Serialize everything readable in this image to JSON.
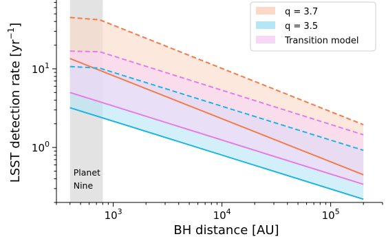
{
  "chart_data": {
    "type": "area",
    "xlabel": "BH distance  [AU]",
    "ylabel": "LSST detection rate  [yr",
    "ylabel_sup": "−1",
    "ylabel_close": "]",
    "x_scale": "log",
    "y_scale": "log",
    "xlim": [
      300,
      300000
    ],
    "ylim": [
      0.2,
      75
    ],
    "grid": false,
    "legend_position": "top-right",
    "x_ticks": [
      {
        "value": 1000,
        "base": "10",
        "exp": "3"
      },
      {
        "value": 10000,
        "base": "10",
        "exp": "4"
      },
      {
        "value": 100000,
        "base": "10",
        "exp": "5"
      }
    ],
    "y_ticks": [
      {
        "value": 1,
        "base": "10",
        "exp": "0"
      },
      {
        "value": 10,
        "base": "10",
        "exp": "1"
      }
    ],
    "shaded_region": {
      "x_range": [
        400,
        800
      ],
      "label_line1": "Planet",
      "label_line2": "Nine",
      "color": "#e0e0e0"
    },
    "bands": [
      {
        "name": "q = 3.7",
        "color": "#f47a48",
        "fill": "#fcd9c6",
        "upper": {
          "x": [
            400,
            750,
            200000
          ],
          "y": [
            45,
            42,
            1.95
          ]
        },
        "lower": {
          "x": [
            400,
            200000
          ],
          "y": [
            13.5,
            0.45
          ]
        }
      },
      {
        "name": "q = 3.5",
        "color": "#1ab4e6",
        "fill": "#b5e6f6",
        "upper": {
          "x": [
            400,
            750,
            200000
          ],
          "y": [
            10.7,
            10.2,
            0.92
          ]
        },
        "lower": {
          "x": [
            400,
            200000
          ],
          "y": [
            3.2,
            0.22
          ]
        }
      },
      {
        "name": "Transition model",
        "color": "#e87ae6",
        "fill": "#f8d6f6",
        "upper": {
          "x": [
            400,
            750,
            200000
          ],
          "y": [
            16.8,
            16.5,
            1.45
          ]
        },
        "lower": {
          "x": [
            400,
            200000
          ],
          "y": [
            5.0,
            0.34
          ]
        }
      }
    ]
  }
}
